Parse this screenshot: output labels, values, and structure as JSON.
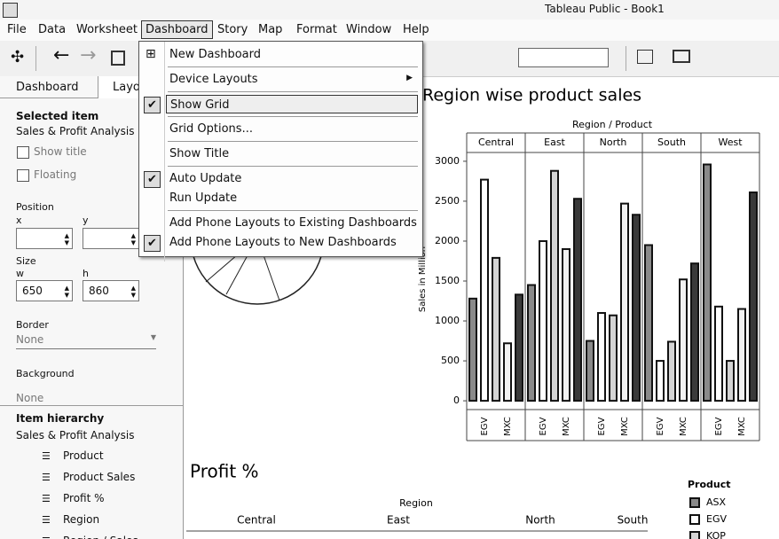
{
  "window": {
    "title": "Tableau Public - Book1"
  },
  "menubar": [
    "File",
    "Data",
    "Worksheet",
    "Dashboard",
    "Story",
    "Map",
    "Format",
    "Window",
    "Help"
  ],
  "menubar_open": 3,
  "dashboard_menu": {
    "groups": [
      [
        {
          "label": "New Dashboard",
          "checked": false,
          "submenu": false,
          "highlighted": false
        }
      ],
      [
        {
          "label": "Device Layouts",
          "checked": false,
          "submenu": true,
          "highlighted": false
        }
      ],
      [
        {
          "label": "Show Grid",
          "checked": true,
          "submenu": false,
          "highlighted": true
        }
      ],
      [
        {
          "label": "Grid Options...",
          "checked": false,
          "submenu": false,
          "highlighted": false
        }
      ],
      [
        {
          "label": "Show Title",
          "checked": false,
          "submenu": false,
          "highlighted": false
        }
      ],
      [
        {
          "label": "Auto Update",
          "checked": true,
          "submenu": false,
          "highlighted": false
        },
        {
          "label": "Run Update",
          "checked": false,
          "submenu": false,
          "highlighted": false
        }
      ],
      [
        {
          "label": "Add Phone Layouts to Existing Dashboards",
          "checked": false,
          "submenu": false,
          "highlighted": false
        },
        {
          "label": "Add Phone Layouts to New Dashboards",
          "checked": true,
          "submenu": false,
          "highlighted": false
        }
      ]
    ]
  },
  "left_panel": {
    "tabs": [
      "Dashboard",
      "Layout"
    ],
    "active_tab": 1,
    "selected_item_heading": "Selected item",
    "selected_item": "Sales & Profit Analysis",
    "checkboxes": [
      "Show title",
      "Floating"
    ],
    "position_heading": "Position",
    "x_label": "x",
    "y_label": "y",
    "size_heading": "Size",
    "w_label": "w",
    "h_label": "h",
    "w": 650,
    "h": 860,
    "border_label": "Border",
    "border_value": "None",
    "background_label": "Background",
    "background_value": "None",
    "hierarchy_heading": "Item hierarchy",
    "hierarchy_root": "Sales & Profit Analysis",
    "hierarchy_items": [
      "Product",
      "Product Sales",
      "Profit %",
      "Region",
      "Region / Sales"
    ]
  },
  "chart_data": {
    "type": "bar",
    "title": "Region wise product sales",
    "x_label": "Region / Product",
    "y_label": "Sales in Million",
    "groups": [
      "Central",
      "East",
      "North",
      "South",
      "West"
    ],
    "categories": [
      null,
      "EGV",
      null,
      "MXC",
      null
    ],
    "colors": [
      "#8a8a8a",
      "#ffffff",
      "#d4d4d4",
      "#f2f2f2",
      "#3a3a3a"
    ],
    "series": [
      {
        "name": "Central",
        "values": [
          1280,
          2770,
          1790,
          720,
          1330
        ]
      },
      {
        "name": "East",
        "values": [
          1450,
          2000,
          2880,
          1900,
          2530
        ]
      },
      {
        "name": "North",
        "values": [
          750,
          1100,
          1070,
          2470,
          2330
        ]
      },
      {
        "name": "South",
        "values": [
          1950,
          500,
          740,
          1520,
          1720
        ]
      },
      {
        "name": "West",
        "values": [
          2960,
          1180,
          500,
          1150,
          2610
        ]
      }
    ],
    "ylim": [
      -110,
      3110
    ],
    "yticks": [
      0,
      500,
      1000,
      1500,
      2000,
      2500,
      3000
    ],
    "legend": {
      "title": "Product",
      "items": [
        "ASX",
        "EGV",
        "KOP"
      ]
    }
  },
  "profit": {
    "title": "Profit %",
    "header": "Region",
    "columns": [
      "Central",
      "East",
      "North",
      "South"
    ]
  }
}
